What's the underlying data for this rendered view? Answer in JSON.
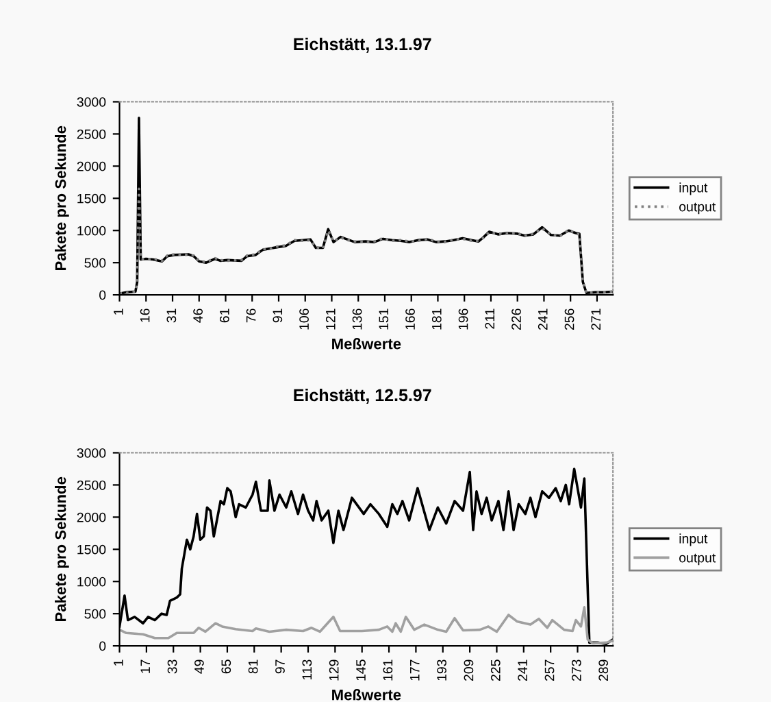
{
  "chart_data": [
    {
      "type": "line",
      "title": "Eichstätt, 13.1.97",
      "xlabel": "Meßwerte",
      "ylabel": "Pakete pro Sekunde",
      "xlim": [
        1,
        280
      ],
      "xticks": [
        1,
        16,
        31,
        46,
        61,
        76,
        91,
        106,
        121,
        136,
        151,
        166,
        181,
        196,
        211,
        226,
        241,
        256,
        271
      ],
      "ylim": [
        0,
        3000
      ],
      "yticks": [
        0,
        500,
        1000,
        1500,
        2000,
        2500,
        3000
      ],
      "grid": false,
      "legend": "right",
      "marker": "none",
      "series": [
        {
          "name": "input",
          "color": "#000000",
          "line_style": "solid",
          "x": [
            1,
            5,
            10,
            11,
            12,
            13,
            16,
            20,
            25,
            28,
            32,
            40,
            43,
            46,
            50,
            55,
            58,
            62,
            70,
            73,
            78,
            82,
            86,
            90,
            95,
            100,
            105,
            109,
            112,
            116,
            119,
            122,
            126,
            130,
            134,
            140,
            145,
            150,
            155,
            160,
            165,
            170,
            175,
            180,
            185,
            190,
            195,
            200,
            204,
            207,
            210,
            215,
            220,
            226,
            230,
            235,
            240,
            245,
            250,
            255,
            259,
            261,
            263,
            265,
            270,
            275,
            280
          ],
          "values": [
            20,
            40,
            50,
            200,
            2750,
            550,
            560,
            550,
            520,
            600,
            620,
            630,
            600,
            520,
            500,
            560,
            530,
            540,
            530,
            600,
            620,
            700,
            720,
            740,
            760,
            840,
            850,
            860,
            730,
            730,
            1020,
            820,
            900,
            860,
            820,
            830,
            820,
            870,
            850,
            840,
            820,
            850,
            860,
            820,
            830,
            850,
            880,
            850,
            830,
            900,
            980,
            940,
            960,
            950,
            920,
            940,
            1050,
            930,
            920,
            1000,
            960,
            950,
            200,
            30,
            40,
            40,
            50
          ]
        },
        {
          "name": "output",
          "color": "#808080",
          "line_style": "dotted",
          "x": [
            1,
            5,
            10,
            11,
            12,
            13,
            16,
            20,
            25,
            28,
            32,
            40,
            43,
            46,
            50,
            55,
            58,
            62,
            70,
            73,
            78,
            82,
            86,
            90,
            95,
            100,
            105,
            109,
            112,
            116,
            119,
            122,
            126,
            130,
            134,
            140,
            145,
            150,
            155,
            160,
            165,
            170,
            175,
            180,
            185,
            190,
            195,
            200,
            204,
            207,
            210,
            215,
            220,
            226,
            230,
            235,
            240,
            245,
            250,
            255,
            259,
            261,
            263,
            265,
            270,
            275,
            280
          ],
          "values": [
            20,
            30,
            50,
            200,
            1650,
            560,
            550,
            560,
            530,
            610,
            630,
            620,
            610,
            530,
            510,
            570,
            540,
            530,
            540,
            610,
            630,
            710,
            710,
            750,
            770,
            850,
            840,
            850,
            740,
            720,
            1000,
            830,
            890,
            850,
            830,
            820,
            830,
            880,
            840,
            850,
            830,
            840,
            870,
            830,
            820,
            860,
            870,
            840,
            840,
            890,
            970,
            950,
            950,
            960,
            910,
            950,
            1030,
            940,
            910,
            1010,
            950,
            940,
            200,
            30,
            40,
            40,
            50
          ]
        }
      ]
    },
    {
      "type": "line",
      "title": "Eichstätt, 12.5.97",
      "xlabel": "Meßwerte",
      "ylabel": "Pakete pro Sekunde",
      "xlim": [
        1,
        294
      ],
      "xticks": [
        1,
        17,
        33,
        49,
        65,
        81,
        97,
        113,
        129,
        145,
        161,
        177,
        193,
        209,
        225,
        241,
        257,
        273,
        289
      ],
      "ylim": [
        0,
        3000
      ],
      "yticks": [
        0,
        500,
        1000,
        1500,
        2000,
        2500,
        3000
      ],
      "grid": false,
      "legend": "right",
      "marker": "none",
      "series": [
        {
          "name": "input",
          "color": "#000000",
          "line_style": "solid",
          "x": [
            1,
            4,
            6,
            10,
            15,
            18,
            22,
            26,
            29,
            31,
            35,
            37,
            38,
            41,
            43,
            45,
            47,
            49,
            51,
            53,
            55,
            57,
            61,
            63,
            65,
            67,
            70,
            72,
            76,
            80,
            82,
            85,
            89,
            90,
            93,
            96,
            100,
            103,
            107,
            110,
            113,
            116,
            118,
            121,
            125,
            128,
            131,
            134,
            139,
            146,
            150,
            155,
            160,
            163,
            166,
            169,
            173,
            178,
            185,
            190,
            195,
            200,
            205,
            209,
            211,
            213,
            216,
            219,
            222,
            226,
            229,
            232,
            235,
            238,
            242,
            245,
            248,
            252,
            256,
            260,
            263,
            266,
            268,
            271,
            275,
            277,
            280,
            285,
            290,
            294
          ],
          "values": [
            300,
            780,
            400,
            450,
            350,
            450,
            400,
            500,
            480,
            700,
            750,
            800,
            1200,
            1650,
            1500,
            1700,
            2050,
            1650,
            1700,
            2150,
            2100,
            1700,
            2250,
            2200,
            2450,
            2400,
            2000,
            2200,
            2150,
            2350,
            2550,
            2100,
            2100,
            2570,
            2100,
            2350,
            2150,
            2400,
            2050,
            2350,
            2100,
            1950,
            2250,
            1950,
            2100,
            1600,
            2100,
            1800,
            2300,
            2050,
            2200,
            2050,
            1850,
            2200,
            2050,
            2250,
            1950,
            2450,
            1800,
            2150,
            1900,
            2250,
            2100,
            2700,
            1800,
            2400,
            2050,
            2300,
            1950,
            2250,
            1800,
            2400,
            1800,
            2200,
            2050,
            2300,
            2000,
            2400,
            2300,
            2450,
            2250,
            2500,
            2200,
            2750,
            2150,
            2600,
            50,
            50,
            30,
            100
          ]
        },
        {
          "name": "output",
          "color": "#a0a0a0",
          "line_style": "solid",
          "x": [
            1,
            5,
            15,
            22,
            30,
            35,
            45,
            48,
            52,
            58,
            62,
            70,
            80,
            82,
            90,
            100,
            110,
            115,
            120,
            128,
            132,
            145,
            155,
            160,
            163,
            165,
            168,
            171,
            176,
            182,
            190,
            195,
            200,
            205,
            215,
            220,
            225,
            232,
            237,
            245,
            250,
            255,
            258,
            265,
            270,
            272,
            275,
            277,
            279,
            282,
            290,
            294
          ],
          "values": [
            250,
            200,
            180,
            120,
            120,
            200,
            200,
            280,
            220,
            350,
            300,
            260,
            230,
            270,
            220,
            250,
            230,
            280,
            220,
            450,
            230,
            230,
            250,
            300,
            220,
            350,
            220,
            450,
            250,
            330,
            250,
            220,
            430,
            240,
            250,
            300,
            220,
            480,
            380,
            330,
            420,
            280,
            400,
            250,
            230,
            400,
            300,
            600,
            100,
            40,
            50,
            80
          ]
        }
      ]
    }
  ]
}
